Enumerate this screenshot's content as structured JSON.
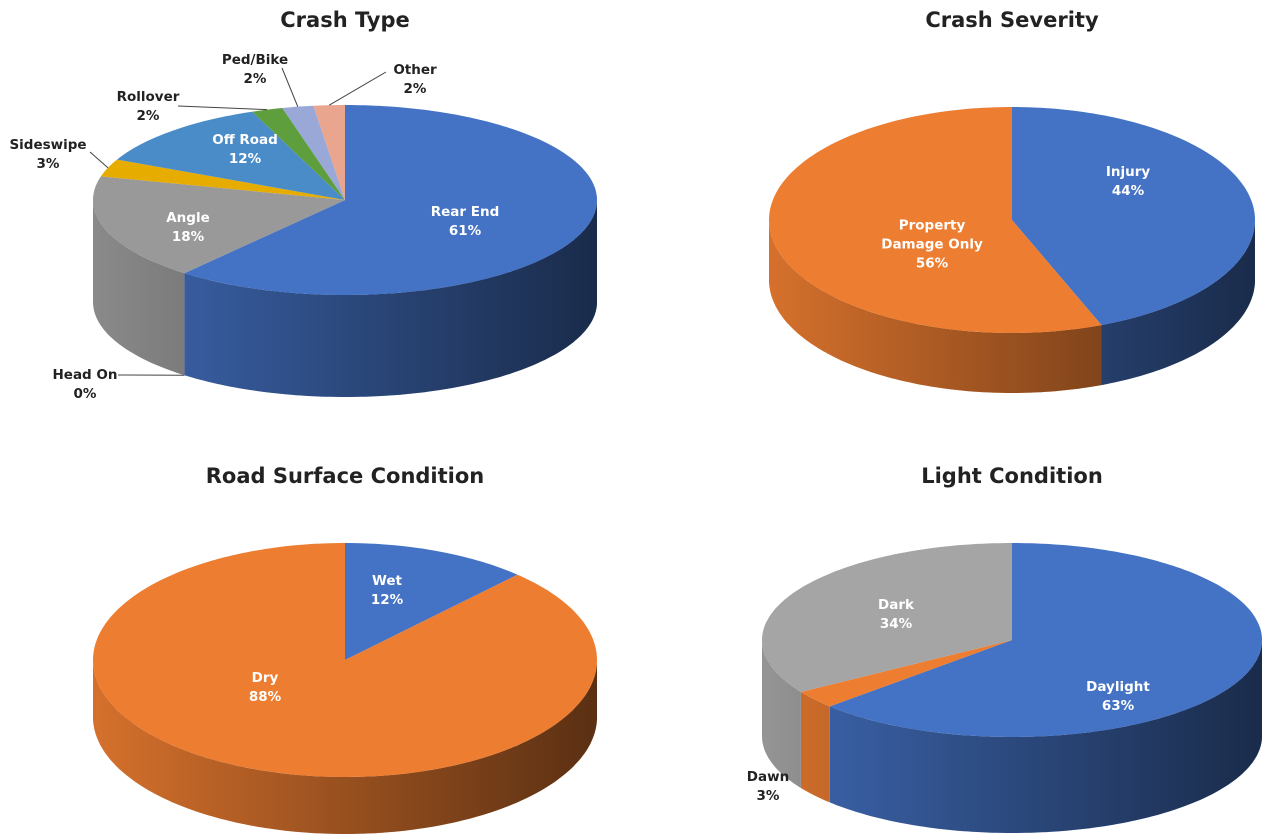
{
  "chart_data": [
    {
      "type": "pie",
      "title": "Crash Type",
      "categories": [
        "Rear End",
        "Head On",
        "Angle",
        "Sideswipe",
        "Off Road",
        "Rollover",
        "Ped/Bike",
        "Other"
      ],
      "values": [
        61,
        0,
        18,
        3,
        12,
        2,
        2,
        2
      ],
      "value_labels": [
        "61%",
        "0%",
        "18%",
        "3%",
        "12%",
        "2%",
        "2%",
        "2%"
      ],
      "colors": [
        "#4472c4",
        "#ed7d31",
        "#999999",
        "#e6ac00",
        "#4a8cc8",
        "#5f9e3c",
        "#9aa8d8",
        "#eaa58e"
      ]
    },
    {
      "type": "pie",
      "title": "Crash Severity",
      "categories": [
        "Injury",
        "Property Damage Only"
      ],
      "values": [
        44,
        56
      ],
      "value_labels": [
        "44%",
        "56%"
      ],
      "colors": [
        "#4472c4",
        "#ed7d31"
      ]
    },
    {
      "type": "pie",
      "title": "Road Surface Condition",
      "categories": [
        "Wet",
        "Dry"
      ],
      "values": [
        12,
        88
      ],
      "value_labels": [
        "12%",
        "88%"
      ],
      "colors": [
        "#4472c4",
        "#ed7d31"
      ]
    },
    {
      "type": "pie",
      "title": "Light Condition",
      "categories": [
        "Daylight",
        "Dawn",
        "Dark"
      ],
      "values": [
        63,
        3,
        34
      ],
      "value_labels": [
        "63%",
        "3%",
        "34%"
      ],
      "colors": [
        "#4472c4",
        "#ed7d31",
        "#a5a5a5"
      ]
    }
  ]
}
